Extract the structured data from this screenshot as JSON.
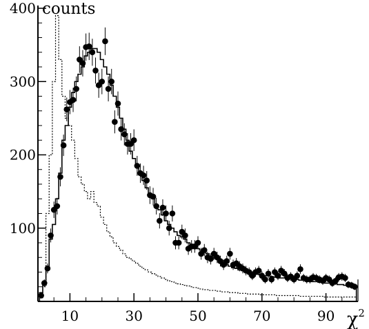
{
  "chart_data": {
    "type": "histogram",
    "ylabel": "counts",
    "xlabel": "χ",
    "xlabel_superscript": "2",
    "xlim": [
      0,
      100
    ],
    "ylim": [
      0,
      400
    ],
    "x_ticks": [
      "10",
      "30",
      "50",
      "70",
      "90"
    ],
    "y_ticks": [
      "100",
      "200",
      "300",
      "400"
    ],
    "x_tick_values": [
      10,
      30,
      50,
      70,
      90
    ],
    "y_tick_values": [
      100,
      200,
      300,
      400
    ],
    "bin_width": 1,
    "bin_start": 0.5,
    "grid": false,
    "series": [
      {
        "style": "solid-step",
        "values": [
          12,
          22,
          45,
          85,
          105,
          140,
          175,
          220,
          240,
          265,
          285,
          300,
          310,
          320,
          335,
          340,
          345,
          345,
          340,
          330,
          320,
          310,
          295,
          280,
          265,
          250,
          235,
          220,
          205,
          195,
          185,
          175,
          165,
          155,
          145,
          140,
          130,
          125,
          118,
          110,
          105,
          100,
          95,
          90,
          88,
          85,
          80,
          78,
          75,
          72,
          70,
          68,
          65,
          62,
          60,
          58,
          55,
          52,
          50,
          48,
          46,
          45,
          43,
          42,
          41,
          40,
          39,
          38,
          37,
          36,
          35,
          35,
          34,
          33,
          33,
          32,
          32,
          31,
          31,
          30,
          30,
          29,
          29,
          28,
          28,
          27,
          27,
          26,
          26,
          25,
          25,
          24,
          24,
          23,
          23,
          22,
          22,
          22,
          21
        ]
      },
      {
        "style": "dotted-step",
        "values": [
          5,
          20,
          120,
          200,
          300,
          390,
          330,
          280,
          250,
          240,
          220,
          195,
          170,
          160,
          150,
          140,
          150,
          135,
          130,
          115,
          105,
          95,
          88,
          80,
          75,
          70,
          65,
          60,
          58,
          55,
          52,
          48,
          45,
          43,
          40,
          38,
          36,
          34,
          32,
          30,
          28,
          27,
          25,
          24,
          23,
          22,
          21,
          20,
          19,
          18,
          17,
          16,
          16,
          15,
          15,
          14,
          14,
          13,
          13,
          12,
          12,
          12,
          11,
          11,
          11,
          10,
          10,
          10,
          10,
          9,
          9,
          9,
          9,
          9,
          8,
          8,
          8,
          8,
          8,
          8,
          8,
          7,
          7,
          7,
          7,
          7,
          7,
          7,
          7,
          6,
          6,
          6,
          6,
          6,
          6,
          6,
          6,
          6,
          6
        ]
      },
      {
        "style": "points-with-error-bars",
        "x": [
          1,
          2,
          3,
          4,
          5,
          6,
          7,
          8,
          9,
          10,
          11,
          12,
          13,
          14,
          15,
          16,
          17,
          18,
          19,
          20,
          21,
          22,
          23,
          24,
          25,
          26,
          27,
          28,
          29,
          30,
          31,
          32,
          33,
          34,
          35,
          36,
          37,
          38,
          39,
          40,
          41,
          42,
          43,
          44,
          45,
          46,
          47,
          48,
          49,
          50,
          51,
          52,
          53,
          54,
          55,
          56,
          57,
          58,
          59,
          60,
          61,
          62,
          63,
          64,
          65,
          66,
          67,
          68,
          69,
          70,
          71,
          72,
          73,
          74,
          75,
          76,
          77,
          78,
          79,
          80,
          81,
          82,
          83,
          84,
          85,
          86,
          87,
          88,
          89,
          90,
          91,
          92,
          93,
          94,
          95,
          96,
          97,
          98,
          99
        ],
        "y": [
          8,
          25,
          45,
          90,
          125,
          130,
          170,
          213,
          262,
          272,
          275,
          290,
          330,
          325,
          347,
          348,
          340,
          315,
          295,
          300,
          355,
          290,
          300,
          245,
          270,
          235,
          228,
          215,
          215,
          220,
          185,
          175,
          172,
          165,
          145,
          143,
          130,
          110,
          128,
          120,
          100,
          120,
          80,
          80,
          95,
          90,
          72,
          75,
          75,
          80,
          65,
          70,
          60,
          58,
          65,
          60,
          55,
          50,
          55,
          65,
          50,
          52,
          48,
          45,
          42,
          40,
          35,
          40,
          42,
          35,
          30,
          38,
          30,
          40,
          35,
          42,
          38,
          32,
          34,
          30,
          35,
          44,
          32,
          30,
          30,
          33,
          32,
          30,
          28,
          32,
          30,
          25,
          28,
          33,
          34,
          32,
          23,
          22,
          20
        ]
      }
    ]
  }
}
